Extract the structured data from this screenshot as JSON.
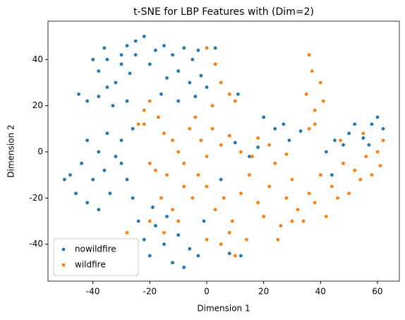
{
  "chart_data": {
    "type": "scatter",
    "title": "t-SNE for LBP Features with (Dim=2)",
    "xlabel": "Dimension 1",
    "ylabel": "Dimension 2",
    "xlim": [
      -55.8,
      67.7
    ],
    "ylim": [
      -56,
      56.6
    ],
    "xticks": [
      -40,
      -20,
      0,
      20,
      40,
      60
    ],
    "yticks": [
      -40,
      -20,
      0,
      20,
      40
    ],
    "legend": "lower left",
    "series": [
      {
        "name": "nowildfire",
        "color": "#1f77b4",
        "x": [
          -45,
          -42,
          -38,
          -35,
          -32,
          -38,
          -35,
          -30,
          -28,
          -25,
          -22,
          -30,
          -27,
          -33,
          -28,
          -40,
          -36,
          -25,
          -20,
          -18,
          -15,
          -12,
          -8,
          -5,
          -3,
          -10,
          -14,
          -6,
          -2,
          -16,
          -10,
          -4,
          0,
          3,
          11,
          -48,
          -46,
          -44,
          -42,
          -40,
          -38,
          -36,
          -34,
          -32,
          -30,
          -28,
          -26,
          -35,
          -30,
          -42,
          -50,
          -38,
          -24,
          -22,
          -20,
          -18,
          -15,
          -12,
          -10,
          -8,
          -6,
          -14,
          -3,
          -19,
          45,
          48,
          50,
          55,
          58,
          60,
          62,
          57,
          52,
          20,
          24,
          27,
          33,
          29,
          18,
          15,
          12,
          8,
          -1,
          5,
          10,
          44,
          42,
          -26
        ],
        "values": [
          25,
          22,
          24,
          28,
          30,
          35,
          40,
          42,
          46,
          48,
          50,
          38,
          34,
          20,
          22,
          40,
          45,
          42,
          38,
          44,
          46,
          42,
          45,
          40,
          44,
          35,
          32,
          30,
          33,
          25,
          22,
          24,
          28,
          45,
          25,
          -10,
          -18,
          -5,
          -22,
          -12,
          0,
          -8,
          -18,
          -2,
          5,
          -12,
          -20,
          8,
          -5,
          5,
          -12,
          -25,
          -30,
          -38,
          -45,
          -32,
          -40,
          -48,
          -36,
          -50,
          -42,
          -28,
          -45,
          -24,
          5,
          3,
          8,
          6,
          12,
          15,
          10,
          3,
          12,
          15,
          10,
          12,
          9,
          5,
          2,
          -2,
          -45,
          -44,
          -30,
          -12,
          4,
          -10,
          0,
          10
        ]
      },
      {
        "name": "wildfire",
        "color": "#ff7f0e",
        "x": [
          -22,
          -20,
          -17,
          -24,
          -15,
          -12,
          -10,
          -8,
          -14,
          -18,
          -20,
          -16,
          -12,
          -8,
          -5,
          -3,
          -6,
          -2,
          0,
          2,
          5,
          8,
          -20,
          -15,
          -10,
          0,
          3,
          6,
          9,
          12,
          15,
          18,
          20,
          22,
          24,
          26,
          28,
          30,
          32,
          34,
          36,
          38,
          40,
          42,
          44,
          46,
          48,
          50,
          52,
          54,
          56,
          58,
          60,
          62,
          61,
          55,
          47,
          18,
          22,
          28,
          16,
          36,
          38,
          35,
          40,
          37,
          36,
          41,
          38,
          0,
          3,
          5,
          8,
          2,
          10,
          5,
          10,
          14,
          8,
          0,
          -28,
          -22,
          25,
          30,
          12,
          -4
        ],
        "values": [
          18,
          22,
          15,
          12,
          8,
          5,
          0,
          -5,
          -10,
          -8,
          -5,
          -20,
          -25,
          -15,
          -20,
          -10,
          10,
          5,
          -2,
          10,
          3,
          7,
          -30,
          -35,
          -30,
          -15,
          -25,
          -20,
          -30,
          -18,
          -10,
          -22,
          -28,
          -15,
          -5,
          -32,
          -20,
          -12,
          -25,
          -30,
          -18,
          -22,
          -10,
          -28,
          -15,
          -20,
          -5,
          -18,
          -8,
          -12,
          -2,
          -10,
          0,
          5,
          -6,
          8,
          5,
          6,
          3,
          -1,
          -2,
          10,
          18,
          25,
          30,
          35,
          42,
          22,
          12,
          45,
          38,
          30,
          25,
          20,
          22,
          -40,
          -45,
          -38,
          -35,
          -38,
          -35,
          12,
          -38,
          -30,
          0,
          15
        ]
      }
    ]
  }
}
